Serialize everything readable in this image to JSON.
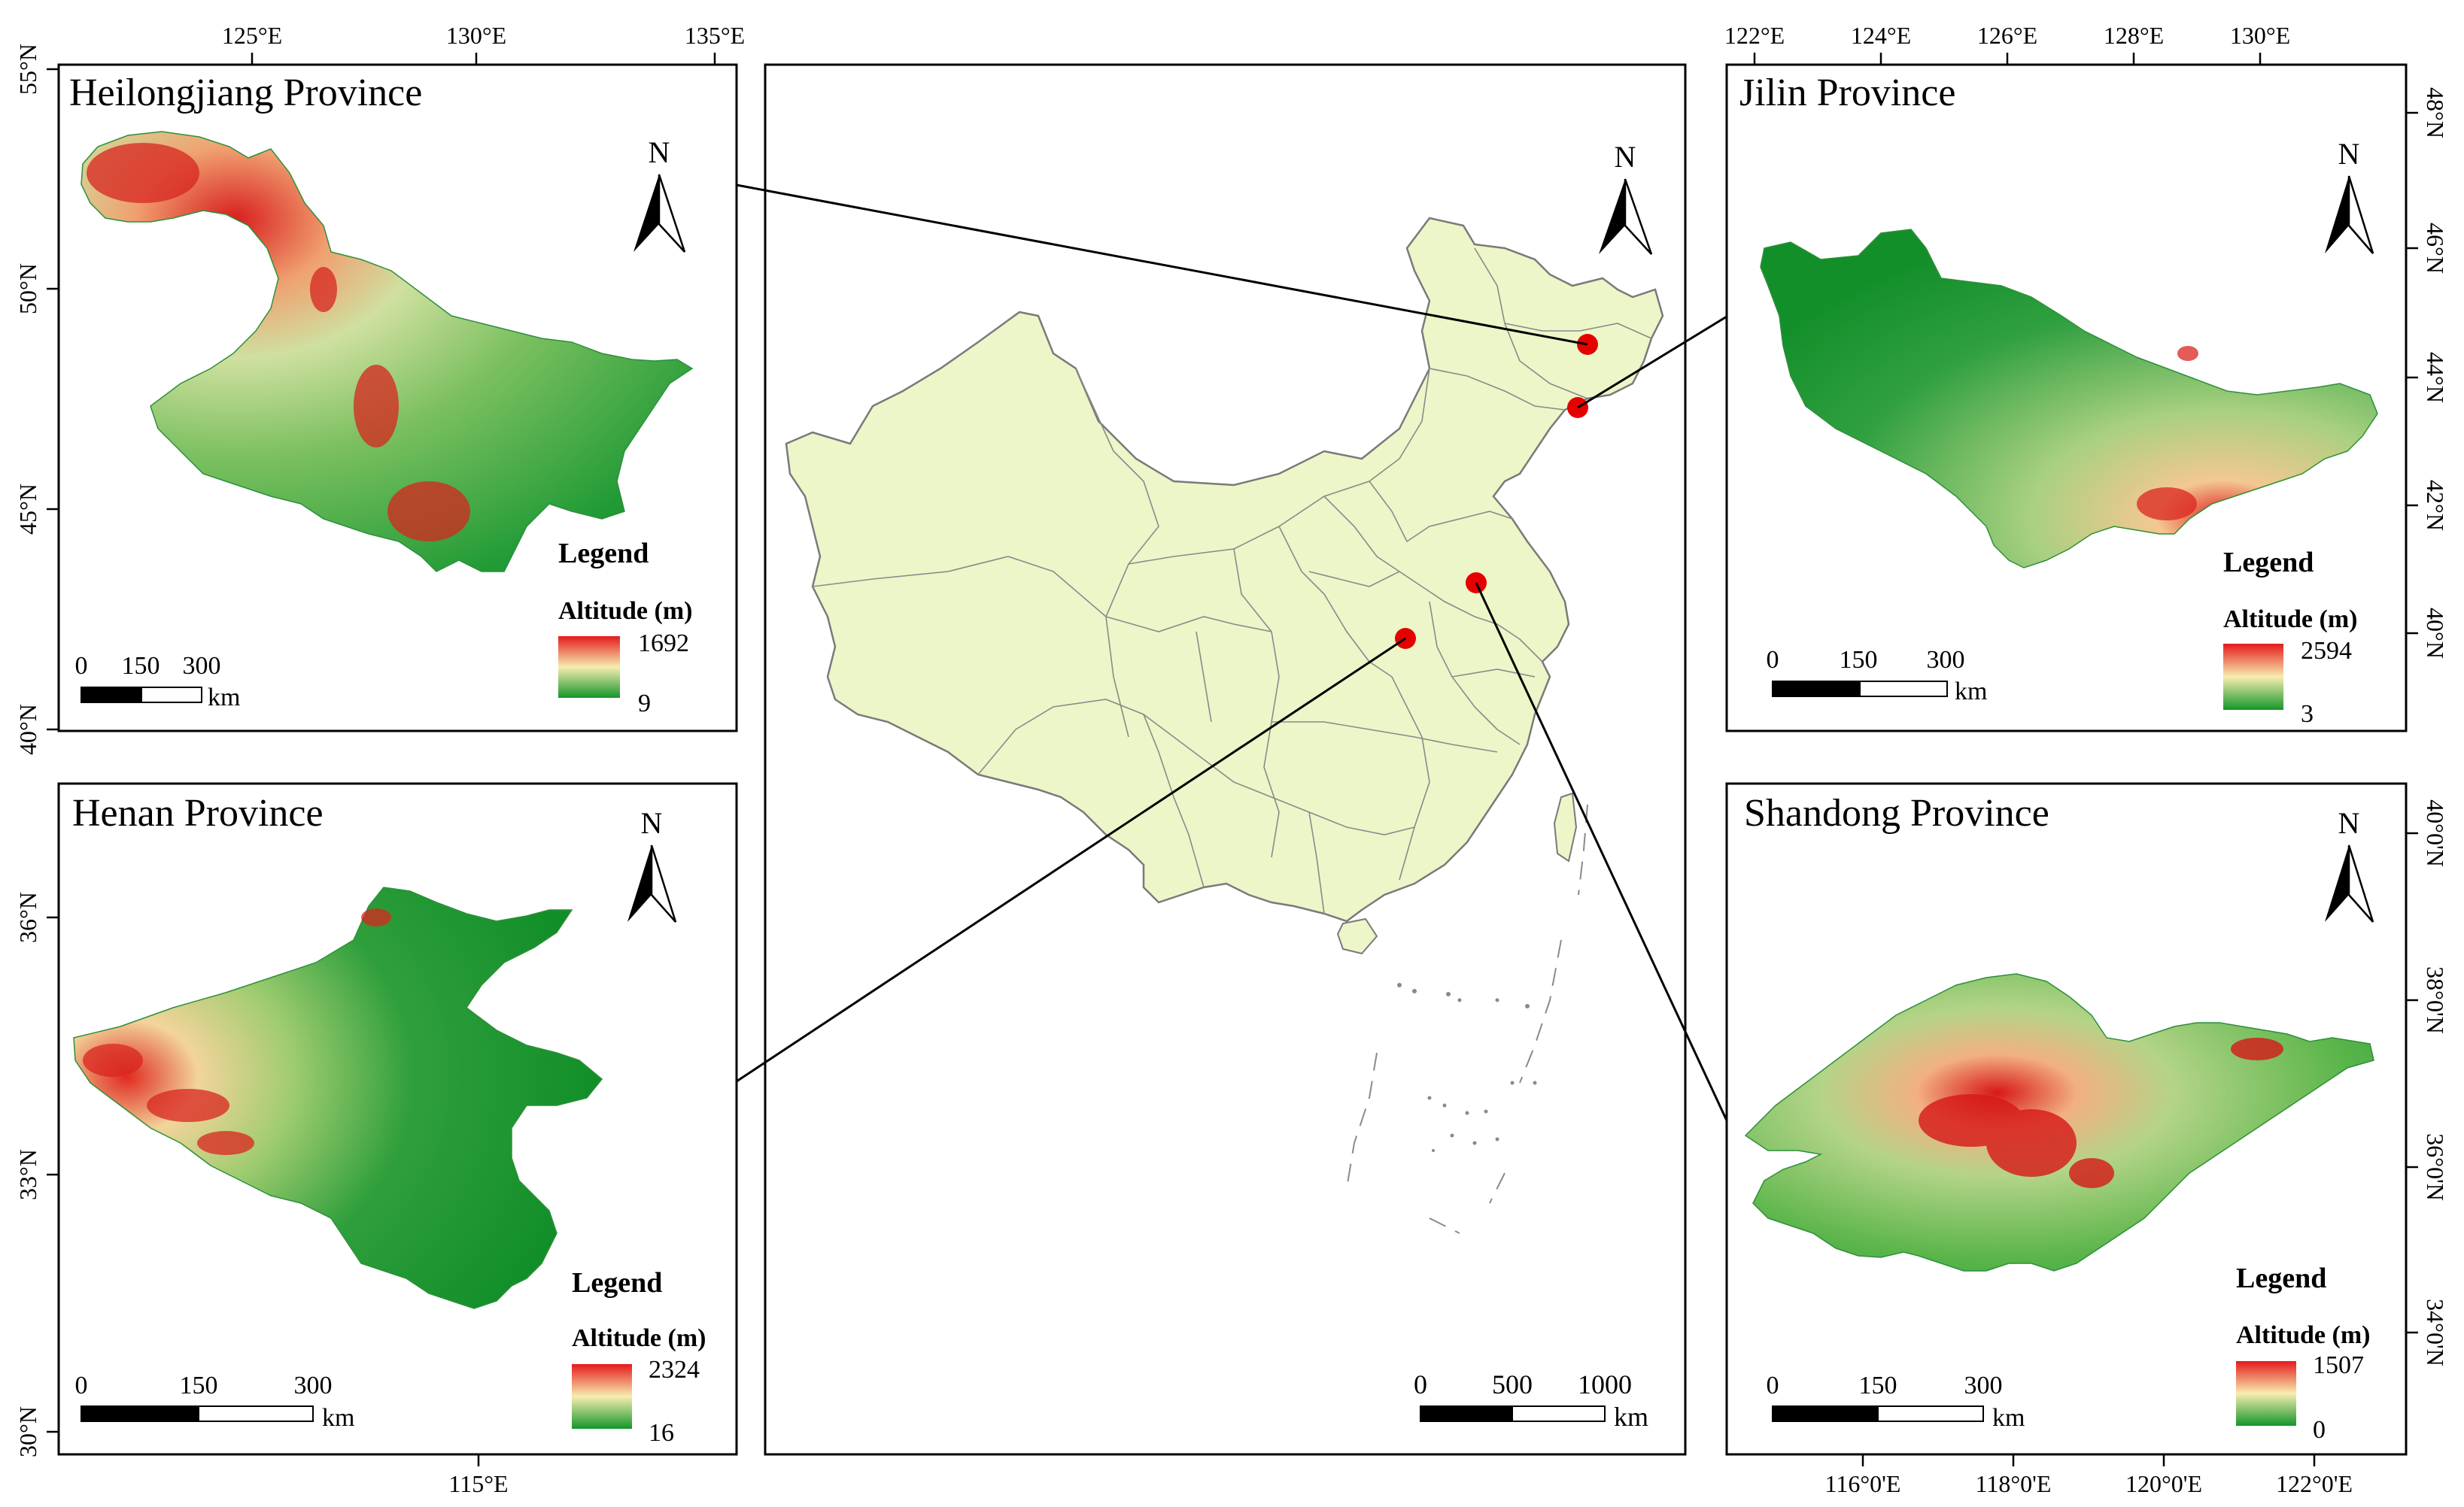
{
  "center": {
    "scale": {
      "ticks": [
        "0",
        "500",
        "1000"
      ],
      "unit": "km"
    }
  },
  "panels": [
    {
      "id": "heilongjiang",
      "title": "Heilongjiang Province",
      "north": "N",
      "top_ticks": [
        "125°E",
        "130°E",
        "135°E"
      ],
      "left_ticks": [
        "55°N",
        "50°N",
        "45°N",
        "40°N"
      ],
      "legend_title": "Legend",
      "legend_subtitle": "Altitude (m)",
      "legend_max": "1692",
      "legend_min": "9",
      "scale": {
        "ticks": [
          "0",
          "150",
          "300"
        ],
        "unit": "km"
      }
    },
    {
      "id": "jilin",
      "title": "Jilin Province",
      "north": "N",
      "top_ticks": [
        "122°E",
        "124°E",
        "126°E",
        "128°E",
        "130°E"
      ],
      "right_ticks": [
        "48°N",
        "46°N",
        "44°N",
        "42°N",
        "40°N"
      ],
      "legend_title": "Legend",
      "legend_subtitle": "Altitude (m)",
      "legend_max": "2594",
      "legend_min": "3",
      "scale": {
        "ticks": [
          "0",
          "150",
          "300"
        ],
        "unit": "km"
      }
    },
    {
      "id": "henan",
      "title": "Henan Province",
      "north": "N",
      "bottom_ticks": [
        "115°E"
      ],
      "left_ticks": [
        "36°N",
        "33°N",
        "30°N"
      ],
      "legend_title": "Legend",
      "legend_subtitle": "Altitude (m)",
      "legend_max": "2324",
      "legend_min": "16",
      "scale": {
        "ticks": [
          "0",
          "150",
          "300"
        ],
        "unit": "km"
      }
    },
    {
      "id": "shandong",
      "title": "Shandong Province",
      "north": "N",
      "bottom_ticks": [
        "116°0'E",
        "118°0'E",
        "120°0'E",
        "122°0'E"
      ],
      "right_ticks": [
        "40°0'N",
        "38°0'N",
        "36°0'N",
        "34°0'N"
      ],
      "legend_title": "Legend",
      "legend_subtitle": "Altitude (m)",
      "legend_max": "1507",
      "legend_min": "0",
      "scale": {
        "ticks": [
          "0",
          "150",
          "300"
        ],
        "unit": "km"
      }
    }
  ],
  "colors": {
    "china_fill": "#ecf6c8",
    "marker": "#e60000",
    "high": "#e41a1c",
    "mid": "#f5e9a8",
    "low": "#1a9a2a"
  }
}
